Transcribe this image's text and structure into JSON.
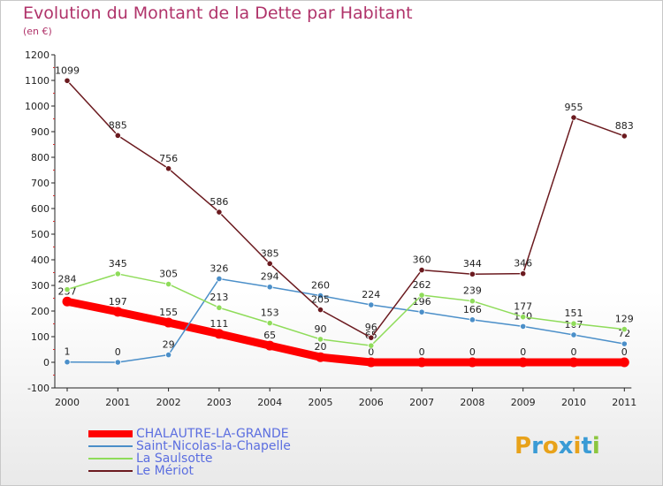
{
  "title": "Evolution du Montant de la Dette par Habitant",
  "subtitle": "(en €)",
  "logo": {
    "text": "Proxiti",
    "colors": [
      "#e8a21a",
      "#3a9bd5",
      "#e8a21a",
      "#3a9bd5",
      "#e8a21a",
      "#3a9bd5",
      "#8cc63f"
    ]
  },
  "chart_data": {
    "type": "line",
    "title": "Evolution du Montant de la Dette par Habitant",
    "subtitle": "(en €)",
    "categories": [
      "2000",
      "2001",
      "2002",
      "2003",
      "2004",
      "2005",
      "2006",
      "2007",
      "2008",
      "2009",
      "2010",
      "2011"
    ],
    "ylim": [
      -100,
      1200
    ],
    "yticks": [
      -100,
      0,
      100,
      200,
      300,
      400,
      500,
      600,
      700,
      800,
      900,
      1000,
      1100,
      1200
    ],
    "grid": false,
    "legend_position": "bottom-left",
    "series": [
      {
        "name": "CHALAUTRE-LA-GRANDE",
        "color": "#ff0000",
        "values": [
          237,
          197,
          155,
          111,
          65,
          20,
          0,
          0,
          0,
          0,
          0,
          0
        ]
      },
      {
        "name": "Saint-Nicolas-la-Chapelle",
        "color": "#4b8fc9",
        "values": [
          1,
          0,
          29,
          326,
          294,
          260,
          224,
          196,
          166,
          140,
          107,
          72
        ]
      },
      {
        "name": "La Saulsotte",
        "color": "#8fdc5a",
        "values": [
          284,
          345,
          305,
          213,
          153,
          90,
          65,
          262,
          239,
          177,
          151,
          129
        ]
      },
      {
        "name": "Le Mériot",
        "color": "#6b1a1f",
        "values": [
          1099,
          885,
          756,
          586,
          385,
          205,
          96,
          360,
          344,
          346,
          955,
          883
        ]
      }
    ]
  }
}
